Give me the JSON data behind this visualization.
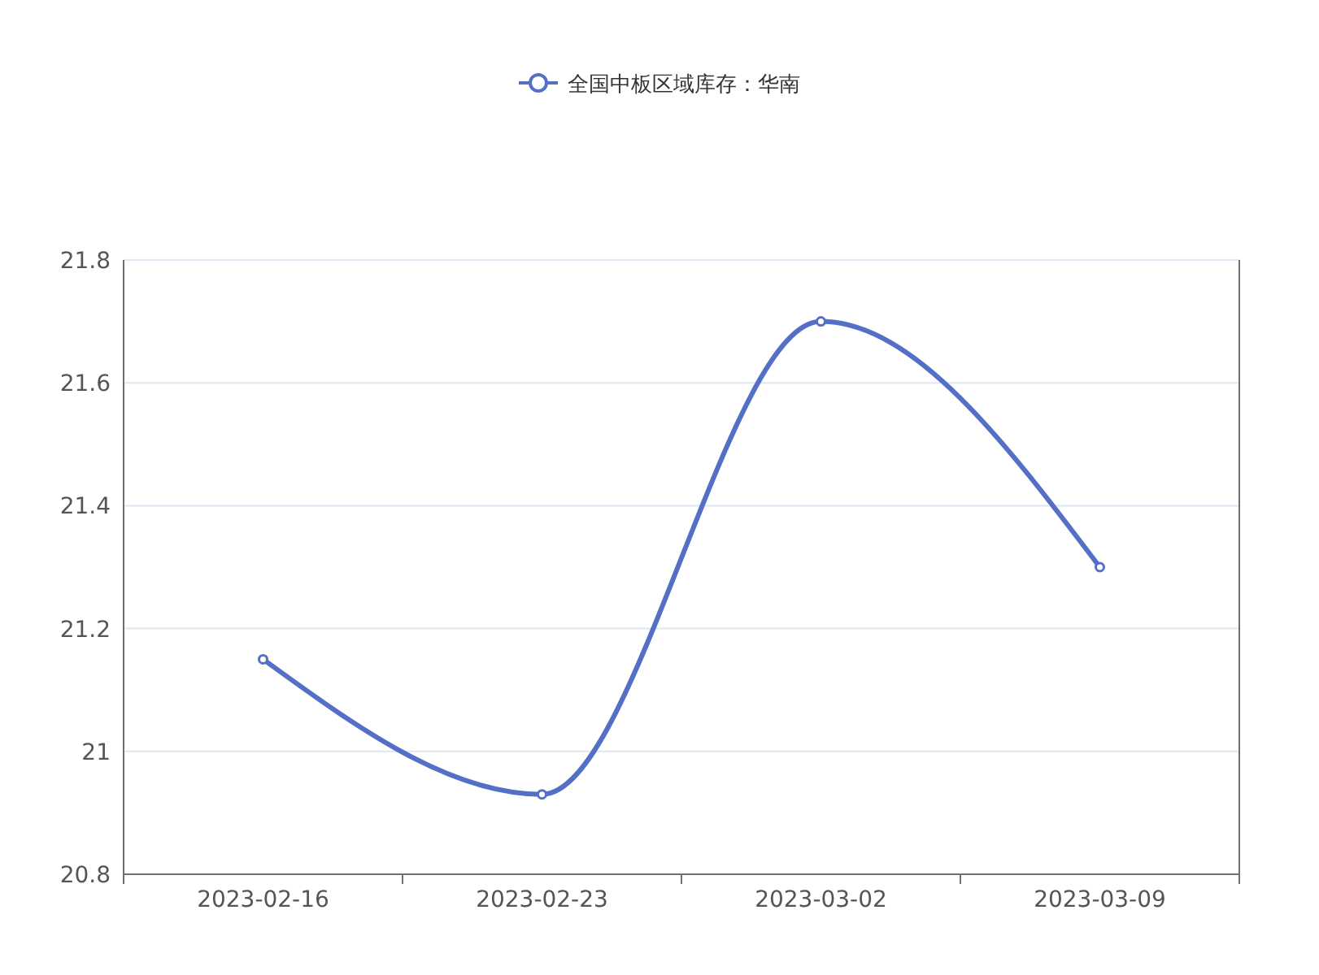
{
  "chart_data": {
    "type": "line",
    "categories": [
      "2023-02-16",
      "2023-02-23",
      "2023-03-02",
      "2023-03-09"
    ],
    "series": [
      {
        "name": "全国中板区域库存：华南",
        "color": "#5470c6",
        "values": [
          21.15,
          20.93,
          21.7,
          21.3
        ]
      }
    ],
    "ylim": [
      20.8,
      21.8
    ],
    "yticks": [
      20.8,
      21,
      21.2,
      21.4,
      21.6,
      21.8
    ],
    "grid": "y",
    "legend": "top",
    "marker": "circle"
  }
}
